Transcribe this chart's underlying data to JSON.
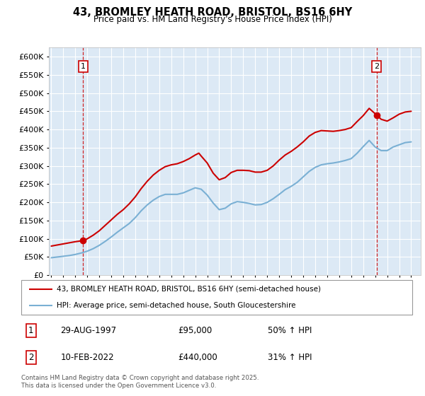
{
  "title": "43, BROMLEY HEATH ROAD, BRISTOL, BS16 6HY",
  "subtitle": "Price paid vs. HM Land Registry's House Price Index (HPI)",
  "ytick_values": [
    0,
    50000,
    100000,
    150000,
    200000,
    250000,
    300000,
    350000,
    400000,
    450000,
    500000,
    550000,
    600000
  ],
  "ylim": [
    0,
    625000
  ],
  "xlim_start": 1994.8,
  "xlim_end": 2025.8,
  "background_color": "#dce9f5",
  "plot_bg_color": "#dce9f5",
  "grid_color": "#ffffff",
  "red_line_color": "#cc0000",
  "blue_line_color": "#7ab0d4",
  "marker1_x": 1997.66,
  "marker1_y": 95000,
  "marker2_x": 2022.11,
  "marker2_y": 440000,
  "vline1_x": 1997.66,
  "vline2_x": 2022.11,
  "legend_red_label": "43, BROMLEY HEATH ROAD, BRISTOL, BS16 6HY (semi-detached house)",
  "legend_blue_label": "HPI: Average price, semi-detached house, South Gloucestershire",
  "annotation1_box": "1",
  "annotation2_box": "2",
  "sale1_date": "29-AUG-1997",
  "sale1_price": "£95,000",
  "sale1_hpi": "50% ↑ HPI",
  "sale2_date": "10-FEB-2022",
  "sale2_price": "£440,000",
  "sale2_hpi": "31% ↑ HPI",
  "footer": "Contains HM Land Registry data © Crown copyright and database right 2025.\nThis data is licensed under the Open Government Licence v3.0.",
  "hpi_red_data_x": [
    1995.0,
    1995.5,
    1996.0,
    1996.5,
    1997.0,
    1997.66,
    1998.0,
    1998.5,
    1999.0,
    1999.5,
    2000.0,
    2000.5,
    2001.0,
    2001.5,
    2002.0,
    2002.5,
    2003.0,
    2003.5,
    2004.0,
    2004.5,
    2005.0,
    2005.5,
    2006.0,
    2006.5,
    2007.0,
    2007.3,
    2007.5,
    2008.0,
    2008.5,
    2009.0,
    2009.5,
    2010.0,
    2010.5,
    2011.0,
    2011.5,
    2012.0,
    2012.5,
    2013.0,
    2013.5,
    2014.0,
    2014.5,
    2015.0,
    2015.5,
    2016.0,
    2016.5,
    2017.0,
    2017.5,
    2018.0,
    2018.5,
    2019.0,
    2019.5,
    2020.0,
    2020.5,
    2021.0,
    2021.5,
    2022.11,
    2022.5,
    2023.0,
    2023.5,
    2024.0,
    2024.5,
    2025.0
  ],
  "hpi_red_data_y": [
    80000,
    83000,
    86000,
    89000,
    92000,
    95000,
    100000,
    110000,
    122000,
    137000,
    152000,
    167000,
    180000,
    196000,
    215000,
    238000,
    258000,
    275000,
    288000,
    298000,
    303000,
    306000,
    312000,
    320000,
    330000,
    335000,
    327000,
    308000,
    280000,
    262000,
    268000,
    282000,
    288000,
    288000,
    287000,
    283000,
    283000,
    288000,
    300000,
    316000,
    330000,
    340000,
    352000,
    366000,
    382000,
    392000,
    397000,
    396000,
    395000,
    397000,
    400000,
    405000,
    422000,
    438000,
    458000,
    440000,
    428000,
    423000,
    432000,
    442000,
    448000,
    450000
  ],
  "hpi_blue_data_x": [
    1995.0,
    1995.5,
    1996.0,
    1996.5,
    1997.0,
    1997.5,
    1998.0,
    1998.5,
    1999.0,
    1999.5,
    2000.0,
    2000.5,
    2001.0,
    2001.5,
    2002.0,
    2002.5,
    2003.0,
    2003.5,
    2004.0,
    2004.5,
    2005.0,
    2005.5,
    2006.0,
    2006.5,
    2007.0,
    2007.5,
    2008.0,
    2008.5,
    2009.0,
    2009.5,
    2010.0,
    2010.5,
    2011.0,
    2011.5,
    2012.0,
    2012.5,
    2013.0,
    2013.5,
    2014.0,
    2014.5,
    2015.0,
    2015.5,
    2016.0,
    2016.5,
    2017.0,
    2017.5,
    2018.0,
    2018.5,
    2019.0,
    2019.5,
    2020.0,
    2020.5,
    2021.0,
    2021.5,
    2022.0,
    2022.5,
    2023.0,
    2023.5,
    2024.0,
    2024.5,
    2025.0
  ],
  "hpi_blue_data_y": [
    48000,
    50000,
    52000,
    54000,
    57000,
    61000,
    66000,
    73000,
    82000,
    93000,
    105000,
    118000,
    130000,
    142000,
    158000,
    177000,
    193000,
    206000,
    216000,
    222000,
    222000,
    222000,
    226000,
    233000,
    240000,
    236000,
    220000,
    198000,
    180000,
    184000,
    196000,
    202000,
    200000,
    197000,
    193000,
    194000,
    200000,
    210000,
    222000,
    235000,
    244000,
    255000,
    270000,
    285000,
    296000,
    303000,
    306000,
    308000,
    311000,
    315000,
    320000,
    335000,
    353000,
    370000,
    352000,
    342000,
    342000,
    352000,
    358000,
    364000,
    366000
  ]
}
